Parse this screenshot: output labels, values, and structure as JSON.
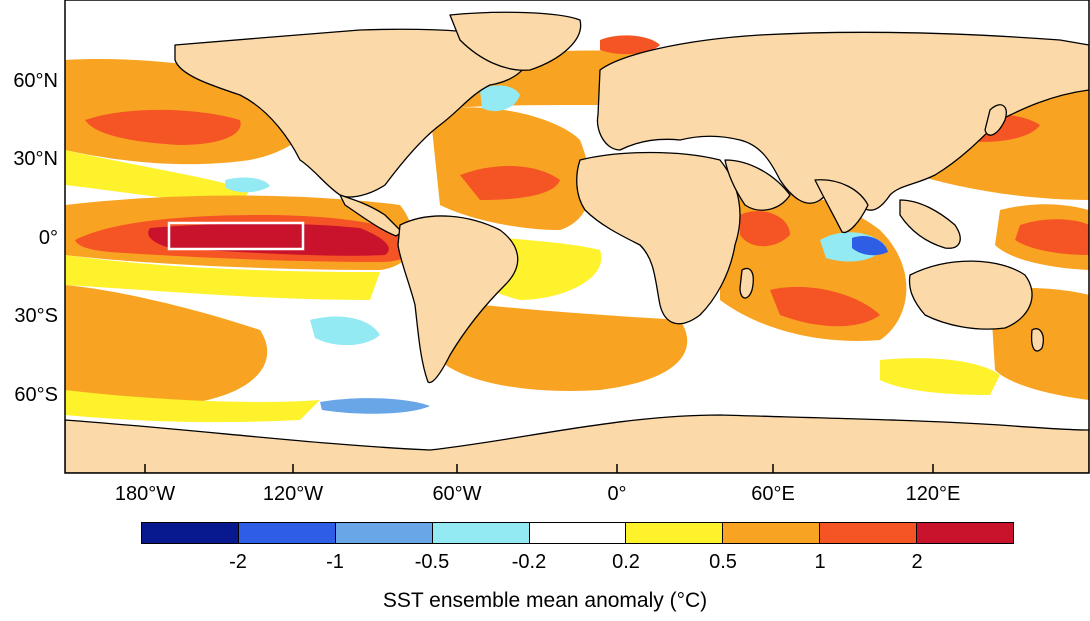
{
  "map": {
    "lat_labels": [
      "60°N",
      "30°N",
      "0°",
      "30°S",
      "60°S"
    ],
    "lon_labels": [
      "180°W",
      "120°W",
      "60°W",
      "0°",
      "60°E",
      "120°E"
    ]
  },
  "legend": {
    "title": "SST ensemble mean anomaly (°C)",
    "ticks": [
      "-2",
      "-1",
      "-0.5",
      "-0.2",
      "0.2",
      "0.5",
      "1",
      "2"
    ],
    "colors": [
      "#08188f",
      "#2e5de6",
      "#68a6e8",
      "#93eaf2",
      "#ffffff",
      "#fdf22b",
      "#f8a422",
      "#f55424",
      "#c9122c"
    ]
  },
  "colors": {
    "land": "#fbd9a8",
    "ocean_base": "#ffffff",
    "coastline": "#000000",
    "highlight_box": "#ffffff"
  }
}
